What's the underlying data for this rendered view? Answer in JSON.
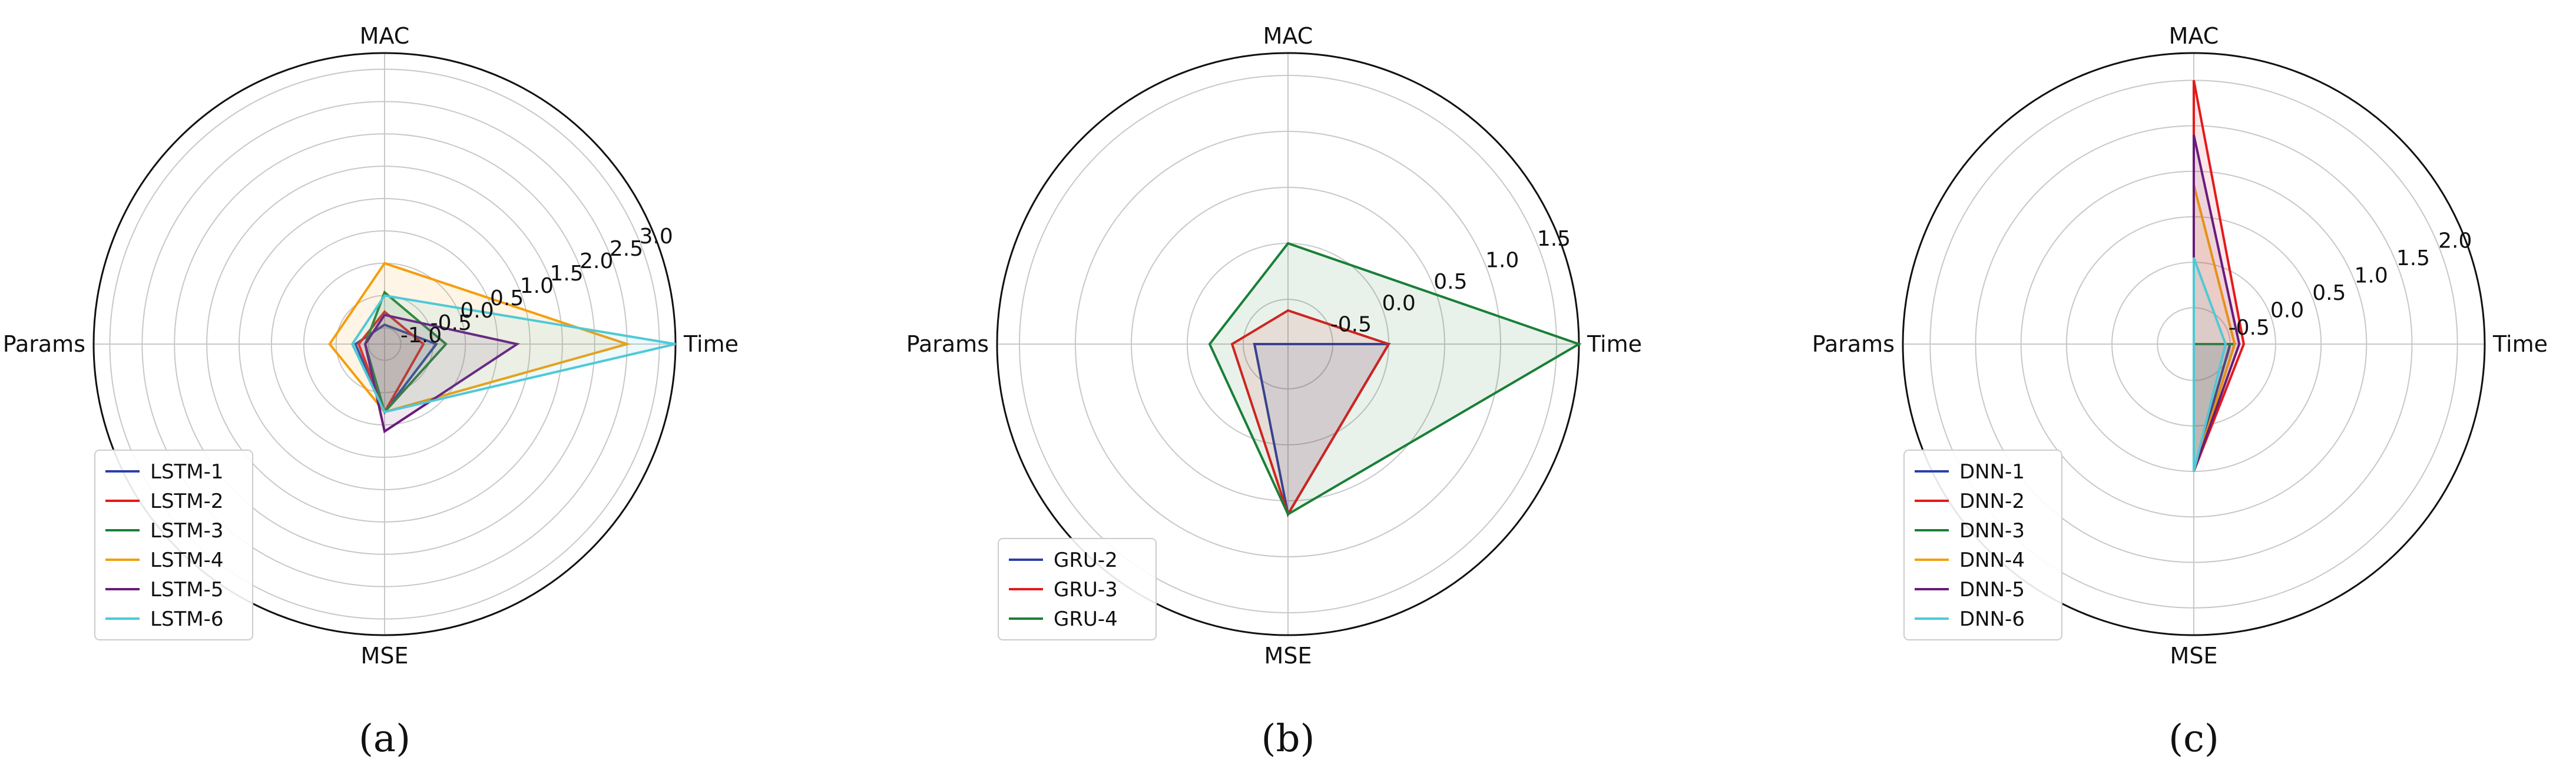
{
  "chart_data": [
    {
      "type": "radar",
      "panel_label": "(a)",
      "axes": [
        "MAC",
        "Params",
        "MSE",
        "Time"
      ],
      "rlim": [
        -1.25,
        3.25
      ],
      "ticks": [
        -1.0,
        -0.5,
        0.0,
        0.5,
        1.0,
        1.5,
        2.0,
        2.5,
        3.0
      ],
      "tick_labels": [
        "-1.0",
        "-0.5",
        "0.0",
        "0.5",
        "1.0",
        "1.5",
        "2.0",
        "2.5",
        "3.0"
      ],
      "legend_position": "lower-left",
      "grid": true,
      "series": [
        {
          "name": "LSTM-1",
          "color": "#2b3fa6",
          "values": [
            -0.95,
            -0.8,
            -0.2,
            -0.45
          ]
        },
        {
          "name": "LSTM-2",
          "color": "#e31a1c",
          "values": [
            -0.75,
            -0.85,
            -0.2,
            -0.65
          ]
        },
        {
          "name": "LSTM-3",
          "color": "#1a7f37",
          "values": [
            -0.45,
            -0.95,
            -0.2,
            -0.3
          ]
        },
        {
          "name": "LSTM-4",
          "color": "#f59e0b",
          "values": [
            0.0,
            -0.4,
            -0.2,
            2.5
          ]
        },
        {
          "name": "LSTM-5",
          "color": "#6a1b7a",
          "values": [
            -0.8,
            -0.95,
            0.1,
            0.8
          ]
        },
        {
          "name": "LSTM-6",
          "color": "#4fc9d6",
          "values": [
            -0.5,
            -0.75,
            -0.2,
            3.25
          ]
        }
      ]
    },
    {
      "type": "radar",
      "panel_label": "(b)",
      "axes": [
        "MAC",
        "Params",
        "MSE",
        "Time"
      ],
      "rlim": [
        -0.9,
        1.7
      ],
      "ticks": [
        -0.5,
        0.0,
        0.5,
        1.0,
        1.5
      ],
      "tick_labels": [
        "-0.5",
        "0.0",
        "0.5",
        "1.0",
        "1.5"
      ],
      "legend_position": "lower-left",
      "grid": true,
      "series": [
        {
          "name": "GRU-2",
          "color": "#2b3fa6",
          "values": [
            -0.9,
            -0.6,
            0.62,
            0.0
          ]
        },
        {
          "name": "GRU-3",
          "color": "#e31a1c",
          "values": [
            -0.6,
            -0.4,
            0.62,
            0.0
          ]
        },
        {
          "name": "GRU-4",
          "color": "#1a7f37",
          "values": [
            0.0,
            -0.2,
            0.62,
            1.7
          ]
        }
      ]
    },
    {
      "type": "radar",
      "panel_label": "(c)",
      "axes": [
        "MAC",
        "Params",
        "MSE",
        "Time"
      ],
      "rlim": [
        -0.9,
        2.3
      ],
      "ticks": [
        -0.5,
        0.0,
        0.5,
        1.0,
        1.5,
        2.0
      ],
      "tick_labels": [
        "-0.5",
        "0.0",
        "0.5",
        "1.0",
        "1.5",
        "2.0"
      ],
      "legend_position": "lower-left",
      "grid": true,
      "series": [
        {
          "name": "DNN-1",
          "color": "#2b3fa6",
          "values": [
            -0.9,
            -0.9,
            0.5,
            -0.5
          ]
        },
        {
          "name": "DNN-2",
          "color": "#e31a1c",
          "values": [
            2.0,
            -0.9,
            0.5,
            -0.35
          ]
        },
        {
          "name": "DNN-3",
          "color": "#1a7f37",
          "values": [
            -0.9,
            -0.9,
            0.5,
            -0.45
          ]
        },
        {
          "name": "DNN-4",
          "color": "#f59e0b",
          "values": [
            0.85,
            -0.9,
            0.5,
            -0.45
          ]
        },
        {
          "name": "DNN-5",
          "color": "#6a1b7a",
          "values": [
            1.4,
            -0.9,
            0.5,
            -0.4
          ]
        },
        {
          "name": "DNN-6",
          "color": "#4fc9d6",
          "values": [
            0.05,
            -0.9,
            0.5,
            -0.55
          ]
        }
      ]
    }
  ]
}
